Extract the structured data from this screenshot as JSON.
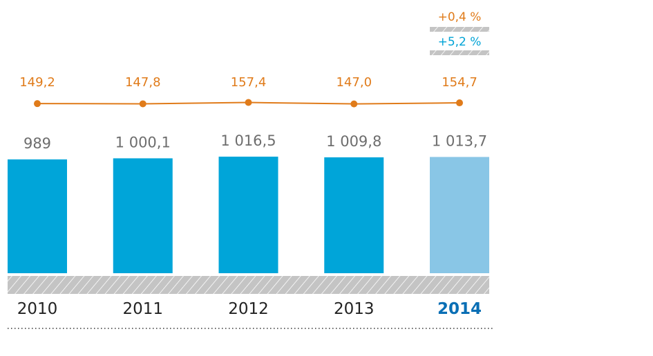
{
  "chart_data": {
    "type": "bar",
    "categories": [
      "2010",
      "2011",
      "2012",
      "2013",
      "2014"
    ],
    "series": [
      {
        "name": "bars",
        "values": [
          989,
          1000.1,
          1016.5,
          1009.8,
          1013.7
        ],
        "labels": [
          "989",
          "1 000,1",
          "1 016,5",
          "1 009,8",
          "1 013,7"
        ]
      },
      {
        "name": "line",
        "type": "line",
        "values": [
          149.2,
          147.8,
          157.4,
          147.0,
          154.7
        ],
        "labels": [
          "149,2",
          "147,8",
          "157,4",
          "147,0",
          "154,7"
        ]
      }
    ],
    "ylim": [
      -150,
      1100
    ],
    "line_ylim": [
      100,
      200
    ],
    "highlight_category": "2014",
    "annotations": [
      {
        "text": "+0,4 %",
        "color": "#e07b1a"
      },
      {
        "text": "+5,2 %",
        "color": "#00a3d6"
      }
    ],
    "colors": {
      "bar": "#00a5d9",
      "bar_highlight": "#89c6e6",
      "line": "#e07b1a",
      "bar_label": "#6d6d6d",
      "hatch": "#c4c4c4",
      "year": "#222222",
      "year_highlight": "#0a6fb5"
    }
  }
}
